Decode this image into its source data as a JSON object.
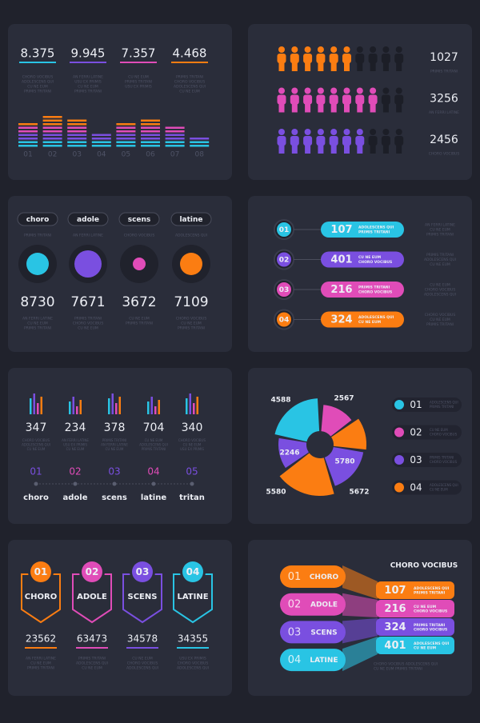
{
  "stats_panel": {
    "stats": [
      {
        "value": "8.375",
        "color": "#29c4e4",
        "lines": [
          "CHORO VOCIBUS",
          "ADOLESCENS QUI",
          "CU NE EUM",
          "PRIMIS TRITANI"
        ]
      },
      {
        "value": "9.945",
        "color": "#7a4fe0",
        "lines": [
          "AN FERRI LATINE",
          "USU EX PRIMIS",
          "CU NE EUM",
          "PRIMIS TRITANI"
        ]
      },
      {
        "value": "7.357",
        "color": "#e04cb8",
        "lines": [
          "CU NE EUM",
          "PRIMIS TRITANI",
          "USU EX PRIMIS"
        ]
      },
      {
        "value": "4.468",
        "color": "#fb7d12",
        "lines": [
          "PRIMIS TRITANI",
          "CHORO VOCIBUS",
          "ADOLESCENS QUI",
          "CU NE EUM"
        ]
      }
    ],
    "bars": [
      {
        "label": "01",
        "level": 7
      },
      {
        "label": "02",
        "level": 9
      },
      {
        "label": "03",
        "level": 8
      },
      {
        "label": "04",
        "level": 4
      },
      {
        "label": "05",
        "level": 7
      },
      {
        "label": "06",
        "level": 8
      },
      {
        "label": "07",
        "level": 6
      },
      {
        "label": "08",
        "level": 3
      }
    ]
  },
  "people_panel": {
    "rows": [
      {
        "value": "1027",
        "text": "PRIMIS TRITANI",
        "color": "#fb7d12",
        "filled": 6,
        "total": 10
      },
      {
        "value": "3256",
        "text": "AN FERRI LATINE",
        "color": "#e04cb8",
        "filled": 8,
        "total": 10
      },
      {
        "value": "2456",
        "text": "CHORO VOCIBUS",
        "color": "#7a4fe0",
        "filled": 7,
        "total": 10
      }
    ]
  },
  "circles_panel": {
    "items": [
      {
        "label": "choro",
        "sub": "PRIMIS TRITANI",
        "color": "#29c4e4",
        "value": "8730",
        "lines": [
          "AN FERRI LATINE",
          "CU NE EUM",
          "PRIMIS TRITANI"
        ]
      },
      {
        "label": "adole",
        "sub": "AN FERRI LATINE",
        "color": "#7a4fe0",
        "value": "7671",
        "lines": [
          "PRIMIS TRITANI",
          "CHORO VOCIBUS",
          "CU NE EUM"
        ]
      },
      {
        "label": "scens",
        "sub": "CHORO VOCIBUS",
        "color": "#e04cb8",
        "value": "3672",
        "lines": [
          "CU NE EUM",
          "PRIMIS TRITANI"
        ]
      },
      {
        "label": "latine",
        "sub": "ADOLESCENS QUI",
        "color": "#fb7d12",
        "value": "7109",
        "lines": [
          "CHORO VOCIBUS",
          "CU NE EUM",
          "PRIMIS TRITANI"
        ]
      }
    ]
  },
  "steps_panel": {
    "rows": [
      {
        "number": "01",
        "value": "107",
        "color": "#29c4e4",
        "lines": [
          "ADOLESCENS QUI",
          "PRIMIS TRITANI"
        ],
        "side": [
          "AN FERRI LATINE",
          "CU NE EUM",
          "PRIMIS TRITANI"
        ]
      },
      {
        "number": "02",
        "value": "401",
        "color": "#7a4fe0",
        "lines": [
          "CU NE EUM",
          "CHORO VOCIBUS"
        ],
        "side": [
          "PRIMIS TRITANI",
          "ADOLESCENS QUI",
          "CU NE EUM"
        ]
      },
      {
        "number": "03",
        "value": "216",
        "color": "#e04cb8",
        "lines": [
          "PRIMIS TRITANI",
          "CHORO VOCIBUS"
        ],
        "side": [
          "CU NE EUM",
          "CHORO VOCIBUS",
          "ADOLESCENS QUI"
        ]
      },
      {
        "number": "04",
        "value": "324",
        "color": "#fb7d12",
        "lines": [
          "ADOLESCENS QUI",
          "CU NE EUM"
        ],
        "side": [
          "CHORO VOCIBUS",
          "CU NE EUM",
          "PRIMIS TRITANI"
        ]
      }
    ]
  },
  "timeline_panel": {
    "items": [
      {
        "value": "347",
        "number": "01",
        "label": "choro",
        "color": "#7a4fe0",
        "lines": [
          "CHORO VOCIBUS",
          "ADOLESCENS QUI",
          "CU NE EUM"
        ]
      },
      {
        "value": "234",
        "number": "02",
        "label": "adole",
        "color": "#e04cb8",
        "lines": [
          "AN FERRI LATINE",
          "USU EX PRIMIS",
          "CU NE EUM"
        ]
      },
      {
        "value": "378",
        "number": "03",
        "label": "scens",
        "color": "#7a4fe0",
        "lines": [
          "PRIMIS TRITANI",
          "AN FERRI LATINE",
          "CU NE EUM"
        ]
      },
      {
        "value": "704",
        "number": "04",
        "label": "latine",
        "color": "#e04cb8",
        "lines": [
          "CU NE EUM",
          "ADOLESCENS QUI",
          "PRIMIS TRITANI"
        ]
      },
      {
        "value": "340",
        "number": "05",
        "label": "tritan",
        "color": "#7a4fe0",
        "lines": [
          "CHORO VOCIBUS",
          "CU NE EUM",
          "USU EX PRIMIS"
        ]
      }
    ]
  },
  "pie_panel": {
    "labels": [
      "4588",
      "2567",
      "2246",
      "5780",
      "5580",
      "5672"
    ],
    "legend": [
      {
        "number": "01",
        "color": "#29c4e4",
        "lines": [
          "ADOLESCENS QUI",
          "PRIMIS TRITANI"
        ]
      },
      {
        "number": "02",
        "color": "#e04cb8",
        "lines": [
          "CU NE EUM",
          "CHORO VOCIBUS"
        ]
      },
      {
        "number": "03",
        "color": "#7a4fe0",
        "lines": [
          "PRIMIS TRITANI",
          "CHORO VOCIBUS"
        ]
      },
      {
        "number": "04",
        "color": "#fb7d12",
        "lines": [
          "ADOLESCENS QUI",
          "CU NE EUM"
        ]
      }
    ]
  },
  "badges_panel": {
    "items": [
      {
        "number": "01",
        "label": "CHORO",
        "color": "#fb7d12",
        "value": "23562",
        "lines": [
          "AN FERRI LATINE",
          "CU NE EUM",
          "PRIMIS TRITANI"
        ]
      },
      {
        "number": "02",
        "label": "ADOLE",
        "color": "#e04cb8",
        "value": "63473",
        "lines": [
          "PRIMIS TRITANI",
          "ADOLESCENS QUI",
          "CU NE EUM"
        ]
      },
      {
        "number": "03",
        "label": "SCENS",
        "color": "#7a4fe0",
        "value": "34578",
        "lines": [
          "CU NE EUM",
          "CHORO VOCIBUS",
          "ADOLESCENS QUI"
        ]
      },
      {
        "number": "04",
        "label": "LATINE",
        "color": "#29c4e4",
        "value": "34355",
        "lines": [
          "USU EX PRIMIS",
          "CHORO VOCIBUS",
          "ADOLESCENS QUI"
        ]
      }
    ]
  },
  "funnel_panel": {
    "title": "CHORO VOCIBUS",
    "rows": [
      {
        "number": "01",
        "label": "CHORO",
        "color": "#fb7d12",
        "value": "107",
        "lines": [
          "ADOLESCENS QUI",
          "PRIMIS TRITANI"
        ]
      },
      {
        "number": "02",
        "label": "ADOLE",
        "color": "#e04cb8",
        "value": "216",
        "lines": [
          "CU NE EUM",
          "CHORO VOCIBUS"
        ]
      },
      {
        "number": "03",
        "label": "SCENS",
        "color": "#7a4fe0",
        "value": "324",
        "lines": [
          "PRIMIS TRITANI",
          "CHORO VOCIBUS"
        ]
      },
      {
        "number": "04",
        "label": "LATINE",
        "color": "#29c4e4",
        "value": "401",
        "lines": [
          "ADOLESCENS QUI",
          "CU NE EUM"
        ]
      }
    ],
    "note": [
      "CHORO VOCIBUS ADOLESCENS QUI",
      "CU NE EUM PRIMIS TRITANI"
    ]
  }
}
